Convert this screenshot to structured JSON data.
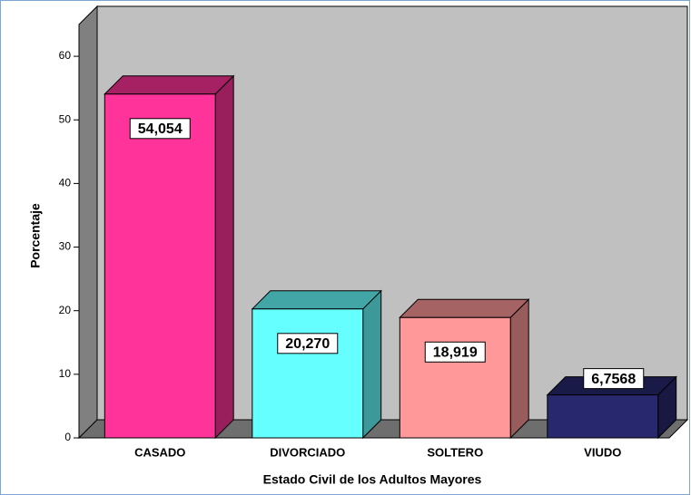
{
  "chart_data": {
    "type": "bar3d",
    "x_label": "Estado Civil de  los Adultos Mayores",
    "y_label": "Porcentaje",
    "categories": [
      "CASADO",
      "DIVORCIADO",
      "SOLTERO",
      "VIUDO"
    ],
    "values": [
      54.054,
      20.27,
      18.919,
      6.7568
    ],
    "value_labels": [
      "54,054",
      "20,270",
      "18,919",
      "6,7568"
    ],
    "colors": [
      "#ff3399",
      "#66ffff",
      "#ff9999",
      "#28286e"
    ],
    "ylim": [
      0,
      65
    ],
    "yticks": [
      0,
      10,
      20,
      30,
      40,
      50,
      60
    ]
  }
}
